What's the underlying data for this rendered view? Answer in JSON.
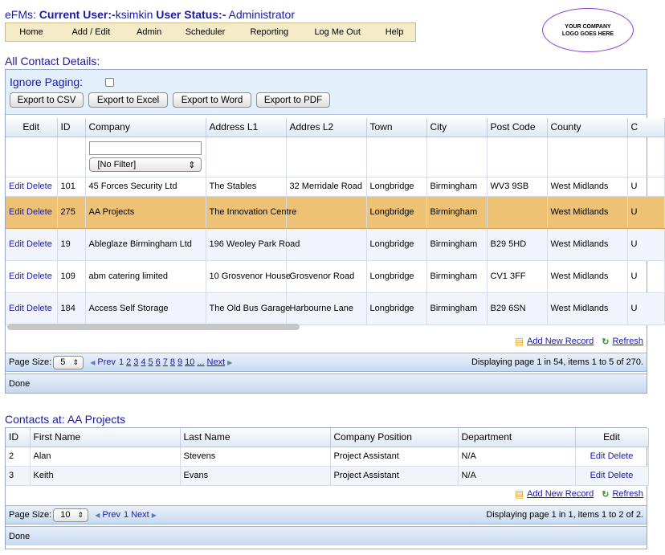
{
  "header": {
    "app": "eFMs:",
    "current_user_label": "Current User:-",
    "current_user": "ksimkin",
    "status_label": "User Status:-",
    "status": "Administrator"
  },
  "menu": [
    {
      "label": "Home"
    },
    {
      "label": "Add / Edit"
    },
    {
      "label": "Admin"
    },
    {
      "label": "Scheduler"
    },
    {
      "label": "Reporting"
    },
    {
      "label": "Log Me Out"
    },
    {
      "label": "Help"
    }
  ],
  "logo": "YOUR COMPANY LOGO GOES HERE",
  "contacts_section": {
    "title": "All Contact Details:",
    "ignore_paging_label": "Ignore Paging:",
    "ignore_paging_checked": false,
    "export_buttons": [
      "Export to CSV",
      "Export to Excel",
      "Export to Word",
      "Export to PDF"
    ],
    "columns": [
      "Edit",
      "ID",
      "Company",
      "Address L1",
      "Addres L2",
      "Town",
      "City",
      "Post Code",
      "County",
      "C"
    ],
    "filter_select": "[No Filter]",
    "edit_label": "Edit",
    "delete_label": "Delete",
    "rows": [
      {
        "id": "101",
        "company": "45 Forces Security Ltd",
        "addr1": "The Stables",
        "addr2": "32 Merridale Road",
        "town": "Longbridge",
        "city": "Birmingham",
        "postcode": "WV3 9SB",
        "county": "West Midlands",
        "c": "U"
      },
      {
        "id": "275",
        "company": "AA Projects",
        "addr1": "The Innovation Centre",
        "addr2": "",
        "town": "Longbridge",
        "city": "Birmingham",
        "postcode": "",
        "county": "West Midlands",
        "c": "U"
      },
      {
        "id": "19",
        "company": "Ableglaze Birmingham Ltd",
        "addr1": "196 Weoley Park Road",
        "addr2": "",
        "town": "Longbridge",
        "city": "Birmingham",
        "postcode": "B29 5HD",
        "county": "West Midlands",
        "c": "U"
      },
      {
        "id": "109",
        "company": "abm catering limited",
        "addr1": "10 Grosvenor House",
        "addr2": "Grosvenor Road",
        "town": "Longbridge",
        "city": "Birmingham",
        "postcode": "CV1 3FF",
        "county": "West Midlands",
        "c": "U"
      },
      {
        "id": "184",
        "company": "Access Self Storage",
        "addr1": "The Old Bus Garage",
        "addr2": "Harbourne Lane",
        "town": "Longbridge",
        "city": "Birmingham",
        "postcode": "B29 6SN",
        "county": "West Midlands",
        "c": "U"
      }
    ],
    "selected_row": 1,
    "add_new_record": "Add New Record",
    "refresh": "Refresh",
    "pager": {
      "page_size_label": "Page Size:",
      "page_size": "5",
      "prev": "Prev",
      "pages": [
        "1",
        "2",
        "3",
        "4",
        "5",
        "6",
        "7",
        "8",
        "9",
        "10",
        "..."
      ],
      "next": "Next",
      "info": "Displaying page 1 in 54, items 1 to 5 of 270."
    },
    "status": "Done"
  },
  "detail_section": {
    "title": "Contacts at: AA Projects",
    "columns": [
      "ID",
      "First Name",
      "Last Name",
      "Company Position",
      "Department",
      "Edit"
    ],
    "edit_label": "Edit",
    "delete_label": "Delete",
    "rows": [
      {
        "id": "2",
        "first": "Alan",
        "last": "Stevens",
        "position": "Project Assistant",
        "department": "N/A"
      },
      {
        "id": "3",
        "first": "Keith",
        "last": "Evans",
        "position": "Project Assistant",
        "department": "N/A"
      }
    ],
    "add_new_record": "Add New Record",
    "refresh": "Refresh",
    "pager": {
      "page_size_label": "Page Size:",
      "page_size": "10",
      "prev": "Prev",
      "pages": [
        "1"
      ],
      "next": "Next",
      "info": "Displaying page 1 in 1, items 1 to 2 of 2."
    },
    "status": "Done"
  },
  "colors": {
    "link": "#1a1aa6",
    "selected_row": "#eec275",
    "menu_bg": "#f4ebc9",
    "panel_bg": "#e3f0fb",
    "logo_border": "#8a3dd6"
  }
}
